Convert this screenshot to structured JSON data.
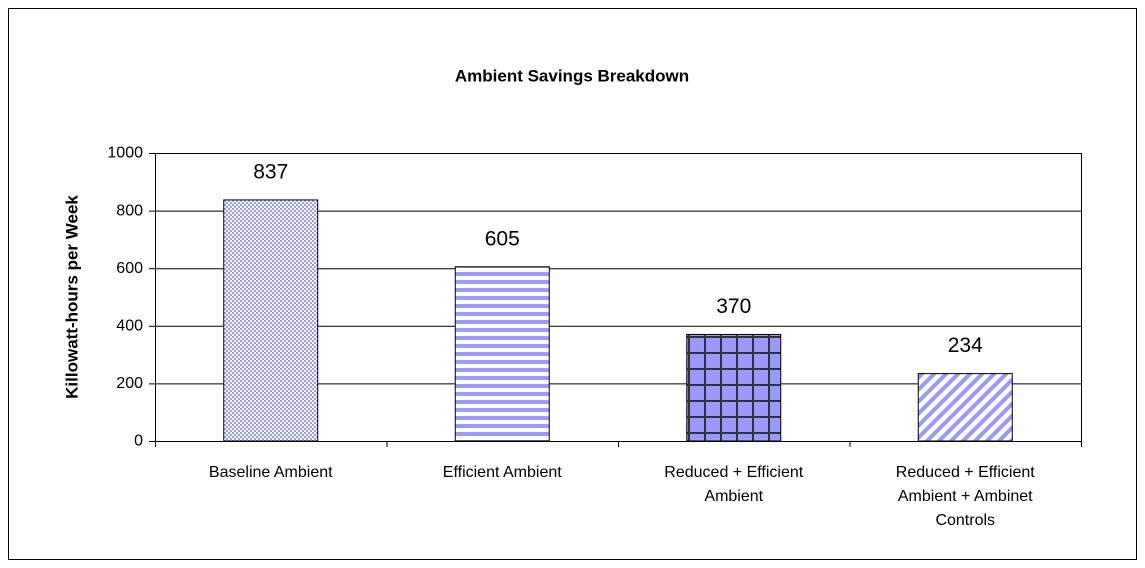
{
  "chart_data": {
    "type": "bar",
    "title": "Ambient Savings Breakdown",
    "y_label": "Killowatt-hours per Week",
    "categories": [
      "Baseline Ambient",
      "Efficient Ambient",
      "Reduced + Efficient Ambient",
      "Reduced + Efficient Ambient + Ambinet Controls"
    ],
    "values": [
      837,
      605,
      370,
      234
    ],
    "color": "#9999ff",
    "ylim": [
      0,
      1000
    ],
    "yticks": [
      0,
      200,
      400,
      600,
      800,
      1000
    ],
    "grid": true
  }
}
